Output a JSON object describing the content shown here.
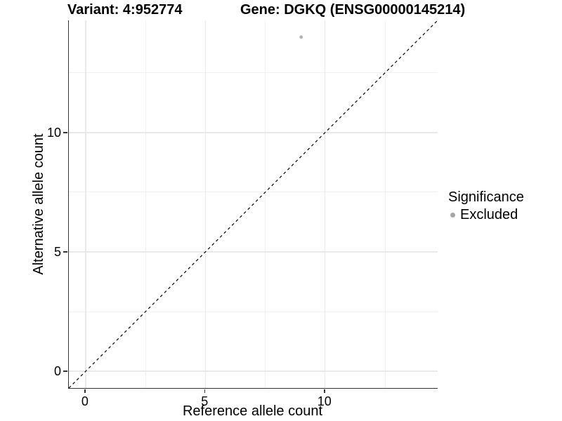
{
  "chart_data": {
    "type": "scatter",
    "title_left": "Variant: 4:952774",
    "title_right": "Gene: DGKQ (ENSG00000145214)",
    "xlabel": "Reference allele count",
    "ylabel": "Alternative allele count",
    "xlim": [
      -0.7,
      14.7
    ],
    "ylim": [
      -0.7,
      14.7
    ],
    "x_ticks": [
      0,
      5,
      10
    ],
    "y_ticks": [
      0,
      5,
      10
    ],
    "x_minor_gridlines": [
      2.5,
      7.5,
      12.5
    ],
    "y_minor_gridlines": [
      2.5,
      7.5,
      12.5
    ],
    "grid": true,
    "reference_line": {
      "type": "identity",
      "equation": "y = x",
      "style": "dashed",
      "color": "#000000"
    },
    "series": [
      {
        "name": "Excluded",
        "marker": "circle",
        "color": "#b3b3b3",
        "marker_radius_px": 2.4,
        "points": [
          {
            "x": 9,
            "y": 14
          }
        ]
      }
    ],
    "legend": {
      "title": "Significance",
      "position": "right",
      "entries": [
        {
          "label": "Excluded",
          "color": "#a6a6a6"
        }
      ]
    },
    "colors": {
      "axis_line": "#333333",
      "grid_major": "#e9e9e9",
      "grid_minor": "#f0f0f0",
      "text": "#000000",
      "background": "#ffffff"
    }
  }
}
